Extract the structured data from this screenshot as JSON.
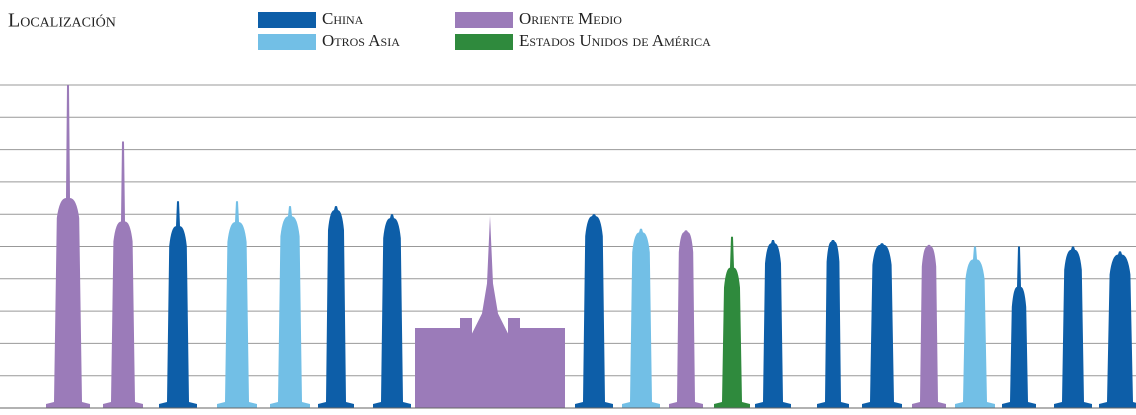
{
  "chart_data": {
    "type": "skyline",
    "title": "Localización",
    "categories": [
      null,
      null,
      null,
      null,
      null,
      null,
      null,
      null,
      null,
      null,
      null,
      null,
      null,
      null,
      null,
      null,
      null,
      null,
      null,
      null
    ],
    "series": [
      {
        "name": "China",
        "color": "#0d5ea8",
        "values": [
          null,
          null,
          6.4,
          null,
          null,
          6.25,
          6.0,
          null,
          6.0,
          null,
          null,
          null,
          5.2,
          5.2,
          5.1,
          null,
          null,
          5.0,
          5.0,
          4.85
        ]
      },
      {
        "name": "Otros Asia",
        "color": "#72bfe6",
        "values": [
          null,
          null,
          null,
          6.4,
          6.25,
          null,
          null,
          null,
          null,
          5.55,
          null,
          null,
          null,
          null,
          null,
          null,
          5.0,
          null,
          null,
          null
        ]
      },
      {
        "name": "Oriente Medio",
        "color": "#9b7bb9",
        "values": [
          10.0,
          8.25,
          null,
          null,
          null,
          null,
          null,
          5.95,
          null,
          null,
          5.5,
          null,
          null,
          null,
          null,
          5.05,
          null,
          null,
          null,
          null
        ]
      },
      {
        "name": "Estados Unidos de América",
        "color": "#2f8a3d",
        "values": [
          null,
          null,
          null,
          null,
          null,
          null,
          null,
          null,
          null,
          null,
          null,
          5.3,
          null,
          null,
          null,
          null,
          null,
          null,
          null,
          null
        ]
      }
    ],
    "ylim": [
      0,
      10
    ],
    "yticks": [
      1,
      2,
      3,
      4,
      5,
      6,
      7,
      8,
      9,
      10
    ],
    "grid": true
  }
}
